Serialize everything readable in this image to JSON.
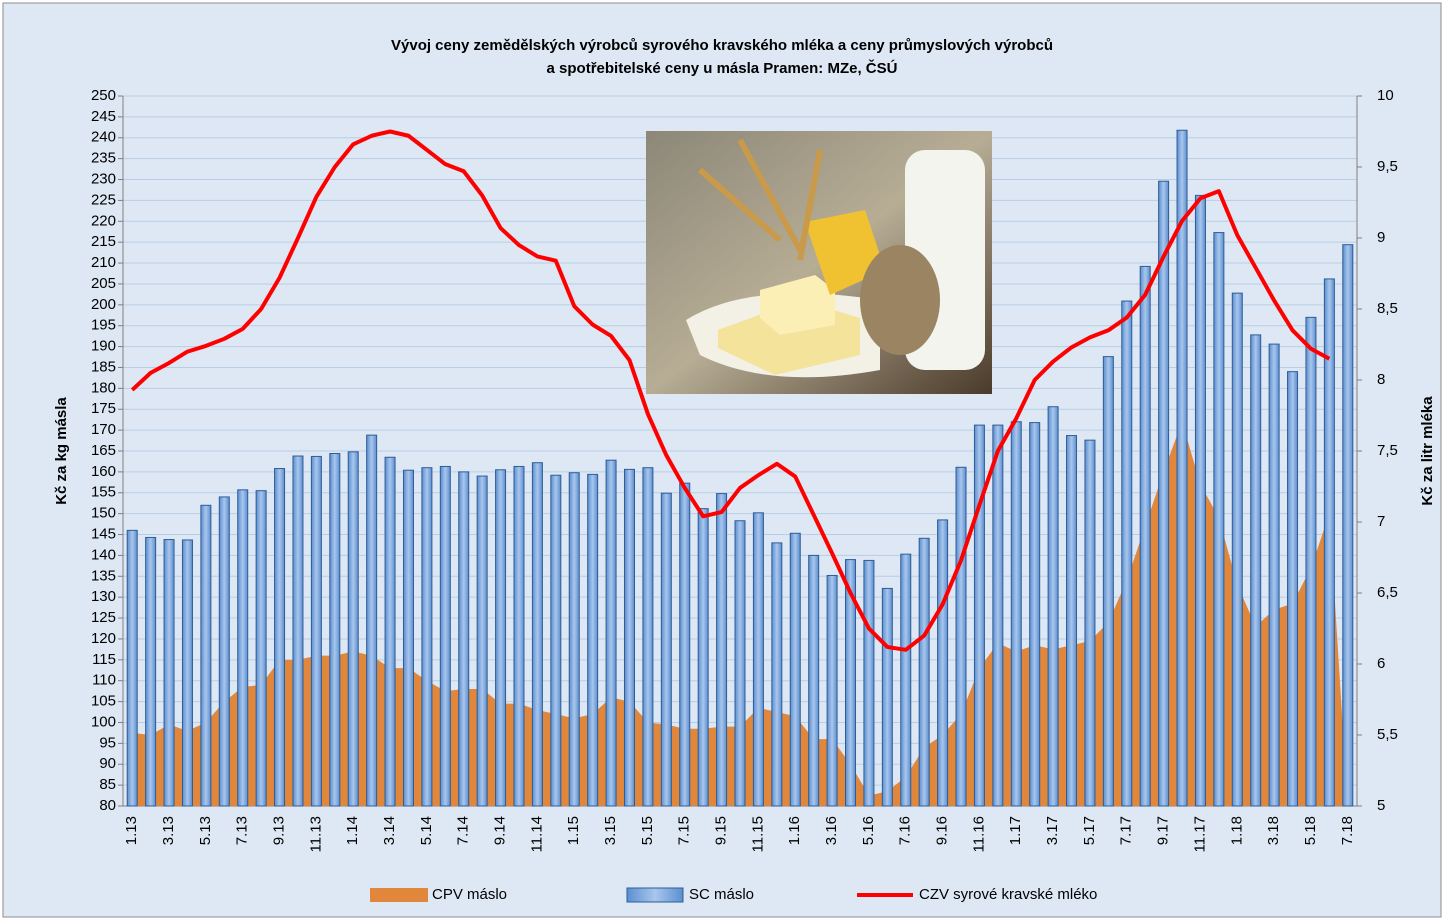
{
  "chart_data": {
    "type": "combo",
    "title": [
      "Vývoj ceny zemědělských výrobců syrového kravského mléka a ceny průmyslových výrobců",
      "a spotřebitelské ceny u másla Pramen: MZe, ČSÚ"
    ],
    "y_label": "Kč za kg másla",
    "y2_label": "Kč za litr mléka",
    "categories": [
      "1.13",
      null,
      "3.13",
      null,
      "5.13",
      null,
      "7.13",
      null,
      "9.13",
      null,
      "11.13",
      null,
      "1.14",
      null,
      "3.14",
      null,
      "5.14",
      null,
      "7.14",
      null,
      "9.14",
      null,
      "11.14",
      null,
      "1.15",
      null,
      "3.15",
      null,
      "5.15",
      null,
      "7.15",
      null,
      "9.15",
      null,
      "11.15",
      null,
      "1.16",
      null,
      "3.16",
      null,
      "5.16",
      null,
      "7.16",
      null,
      "9.16",
      null,
      "11.16",
      null,
      "1.17",
      null,
      "3.17",
      null,
      "5.17",
      null,
      "7.17",
      null,
      "9.17",
      null,
      "11.17",
      null,
      "1.18",
      null,
      "3.18",
      null,
      "5.18",
      null,
      "7.18"
    ],
    "series": [
      {
        "name": "CPV máslo",
        "kind": "area",
        "color": "#e0873c",
        "values": [
          97.5,
          97,
          99.5,
          98,
          100,
          105,
          108.5,
          109,
          115,
          115,
          116,
          116,
          117,
          116,
          113,
          113,
          110,
          107.5,
          108,
          108,
          104.5,
          104.5,
          103,
          102,
          101,
          102,
          106,
          105,
          100,
          99.5,
          98.5,
          98.5,
          99,
          99,
          103.5,
          102.5,
          101.5,
          96,
          96,
          90,
          82.5,
          83.5,
          87,
          94,
          97,
          102,
          113,
          119,
          117,
          118.5,
          117.5,
          118.5,
          119.5,
          124,
          134,
          147,
          160,
          172,
          157,
          149,
          133,
          123,
          127,
          128.5,
          137,
          150,
          80
        ]
      },
      {
        "name": "SC máslo",
        "kind": "bar",
        "color": "#7ba7da",
        "values": [
          146,
          144.3,
          143.8,
          143.7,
          152,
          154,
          155.7,
          155.5,
          160.8,
          163.8,
          163.7,
          164.4,
          164.8,
          168.8,
          163.5,
          160.4,
          161,
          161.3,
          160,
          159,
          160.5,
          161.3,
          162.2,
          159.2,
          159.8,
          159.4,
          162.8,
          160.6,
          161,
          154.9,
          157.3,
          151.2,
          154.8,
          148.3,
          150.2,
          143,
          145.3,
          140,
          135.2,
          139,
          138.8,
          132.1,
          140.3,
          144.1,
          148.5,
          161.1,
          171.2,
          171.2,
          172,
          171.8,
          175.6,
          168.7,
          167.6,
          187.6,
          200.9,
          209.2,
          229.6,
          241.8,
          226.2,
          217.3,
          202.8,
          192.8,
          190.6,
          184,
          197,
          206.2,
          214.4
        ]
      },
      {
        "name": "CZV syrové kravské mléko",
        "kind": "line",
        "axis": "y2",
        "color": "#ff0000",
        "values": [
          7.93,
          8.05,
          8.12,
          8.2,
          8.24,
          8.29,
          8.36,
          8.5,
          8.72,
          9.0,
          9.29,
          9.5,
          9.66,
          9.72,
          9.75,
          9.72,
          9.62,
          9.52,
          9.47,
          9.3,
          9.07,
          8.95,
          8.87,
          8.84,
          8.52,
          8.39,
          8.31,
          8.14,
          7.76,
          7.47,
          7.24,
          7.04,
          7.07,
          7.24,
          7.33,
          7.41,
          7.32,
          7.05,
          6.78,
          6.5,
          6.25,
          6.12,
          6.1,
          6.2,
          6.42,
          6.73,
          7.12,
          7.5,
          7.73,
          8.0,
          8.13,
          8.23,
          8.3,
          8.35,
          8.44,
          8.6,
          8.87,
          9.12,
          9.28,
          9.33,
          9.02,
          8.79,
          8.56,
          8.35,
          8.22,
          8.15,
          null
        ]
      }
    ],
    "ylim": [
      80,
      250
    ],
    "yticks": [
      80,
      85,
      90,
      95,
      100,
      105,
      110,
      115,
      120,
      125,
      130,
      135,
      140,
      145,
      150,
      155,
      160,
      165,
      170,
      175,
      180,
      185,
      190,
      195,
      200,
      205,
      210,
      215,
      220,
      225,
      230,
      235,
      240,
      245,
      250
    ],
    "y2lim": [
      5,
      10
    ],
    "y2ticks": [
      5,
      {
        "value": 5.5,
        "label": "5,5"
      },
      6,
      {
        "value": 6.5,
        "label": "6,5"
      },
      7,
      {
        "value": 7.5,
        "label": "7,5"
      },
      8,
      {
        "value": 8.5,
        "label": "8,5"
      },
      9,
      {
        "value": 9.5,
        "label": "9,5"
      },
      10
    ],
    "grid": true
  }
}
